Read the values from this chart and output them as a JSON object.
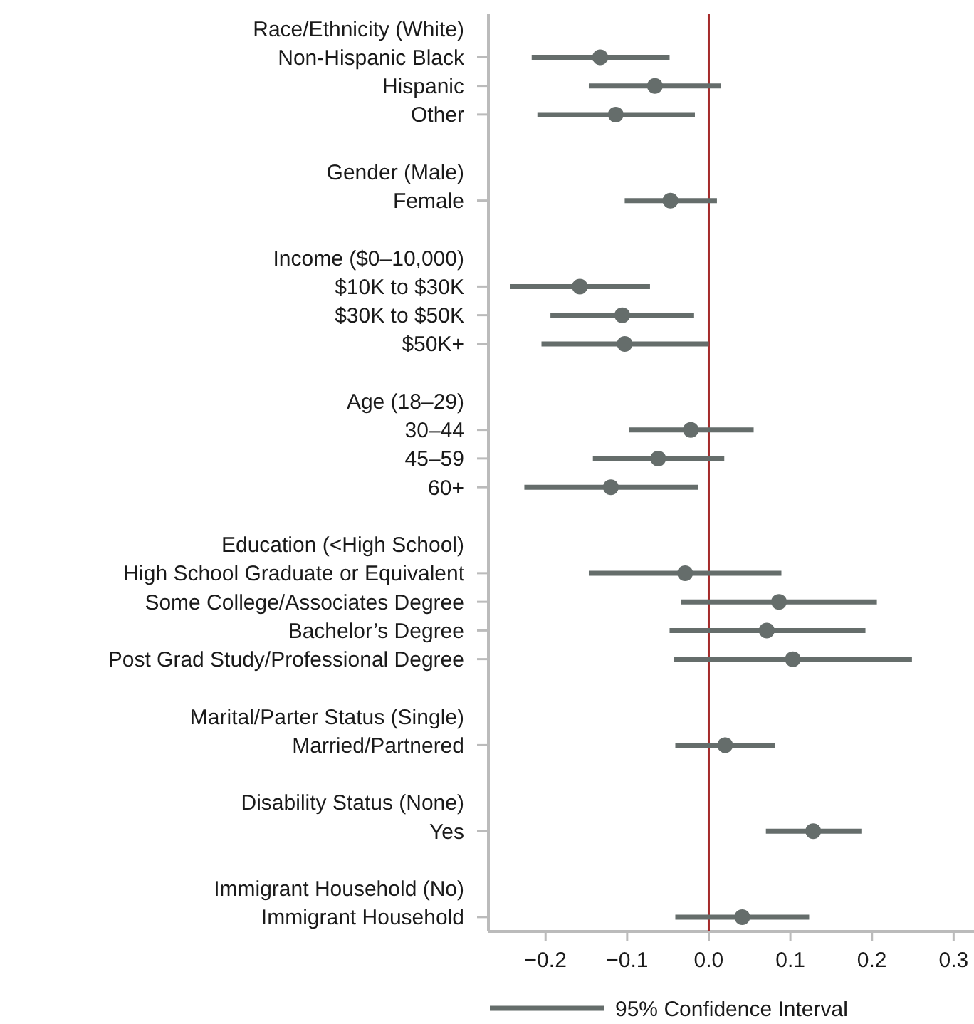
{
  "chart_data": {
    "type": "scatter",
    "orientation": "horizontal",
    "marker": "circle",
    "legend": "bottom",
    "grid": false,
    "categories": [
      "Race/Ethnicity (White)",
      "Non-Hispanic Black",
      "Hispanic",
      "Other",
      null,
      "Gender (Male)",
      "Female",
      null,
      "Income ($0–10,000)",
      "$10K to $30K",
      "$30K to $50K",
      "$50K+",
      null,
      "Age (18–29)",
      "30–44",
      "45–59",
      "60+",
      null,
      "Education (<High School)",
      "High School Graduate or Equivalent",
      "Some College/Associates Degree",
      "Bachelor’s Degree",
      "Post Grad Study/Professional Degree",
      null,
      "Marital/Parter Status (Single)",
      "Married/Partnered",
      null,
      "Disability Status (None)",
      "Yes",
      null,
      "Immigrant Household (No)",
      "Immigrant Household"
    ],
    "series": [
      {
        "name": "95% Confidence Interval",
        "color": "#656d6b",
        "values": [
          null,
          -0.133,
          -0.066,
          -0.114,
          null,
          null,
          -0.047,
          null,
          null,
          -0.158,
          -0.106,
          -0.103,
          null,
          null,
          -0.022,
          -0.062,
          -0.12,
          null,
          null,
          -0.029,
          0.086,
          0.071,
          0.103,
          null,
          null,
          0.02,
          null,
          null,
          0.128,
          null,
          null,
          0.041
        ],
        "errors": [
          null,
          [
            -0.217,
            -0.048
          ],
          [
            -0.147,
            0.015
          ],
          [
            -0.21,
            -0.017
          ],
          null,
          null,
          [
            -0.103,
            0.01
          ],
          null,
          null,
          [
            -0.243,
            -0.072
          ],
          [
            -0.194,
            -0.018
          ],
          [
            -0.205,
            0.0
          ],
          null,
          null,
          [
            -0.098,
            0.055
          ],
          [
            -0.142,
            0.019
          ],
          [
            -0.226,
            -0.013
          ],
          null,
          null,
          [
            -0.147,
            0.089
          ],
          [
            -0.034,
            0.206
          ],
          [
            -0.048,
            0.192
          ],
          [
            -0.043,
            0.249
          ],
          null,
          null,
          [
            -0.041,
            0.081
          ],
          null,
          null,
          [
            0.07,
            0.187
          ],
          null,
          null,
          [
            -0.041,
            0.123
          ]
        ]
      }
    ],
    "xlim": [
      -0.27,
      0.325
    ],
    "xticks": [
      {
        "value": -0.2,
        "label": "−0.2"
      },
      {
        "value": -0.1,
        "label": "−0.1"
      },
      {
        "value": 0,
        "label": "0.0"
      },
      0.1,
      0.2,
      0.3
    ],
    "ref_lines": [
      {
        "axis": "x",
        "value": 0,
        "color": "#a52a2a"
      }
    ]
  }
}
